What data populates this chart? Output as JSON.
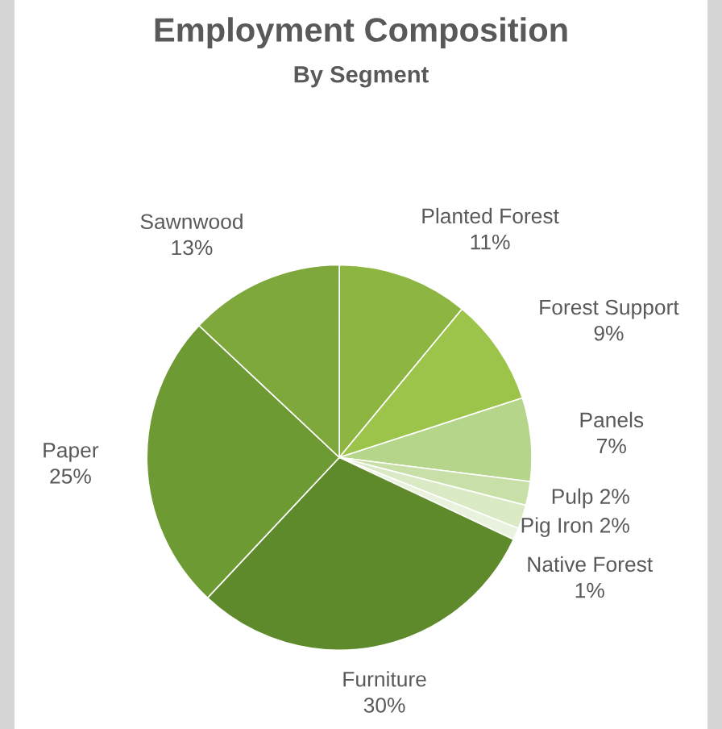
{
  "chart_data": {
    "type": "pie",
    "title": "Employment Composition",
    "subtitle": "By Segment",
    "categories": [
      "Planted Forest",
      "Forest Support",
      "Panels",
      "Pulp",
      "Pig Iron",
      "Native Forest",
      "Furniture",
      "Paper",
      "Sawnwood"
    ],
    "values": [
      11,
      9,
      7,
      2,
      2,
      1,
      30,
      25,
      13
    ],
    "colors": [
      "#8db542",
      "#9dc44a",
      "#b5d58a",
      "#c8e0a8",
      "#d9eac4",
      "#e8f2dc",
      "#5e8a2c",
      "#6e9a34",
      "#7ea83c"
    ],
    "value_labels": [
      "11%",
      "9%",
      "7%",
      "2%",
      "2%",
      "1%",
      "30%",
      "25%",
      "13%"
    ],
    "legend": false
  }
}
